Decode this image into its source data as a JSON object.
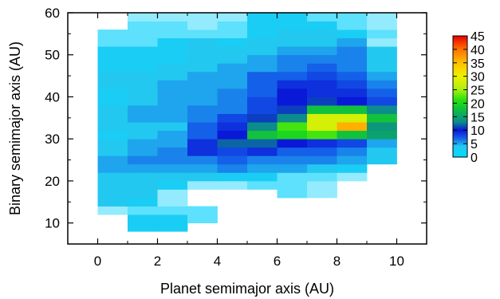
{
  "chart_data": {
    "type": "heatmap",
    "title": "",
    "xlabel": "Planet semimajor axis (AU)",
    "ylabel": "Binary semimajor axis (AU)",
    "xlim": [
      -1,
      11
    ],
    "ylim": [
      5,
      60
    ],
    "x_ticks": [
      0,
      2,
      4,
      6,
      8,
      10
    ],
    "y_ticks": [
      10,
      20,
      30,
      40,
      50,
      60
    ],
    "x_bins": [
      0,
      1,
      2,
      3,
      4,
      5,
      6,
      7,
      8,
      9,
      10
    ],
    "y_bins": [
      8,
      10,
      12,
      14,
      16,
      18,
      20,
      22,
      24,
      26,
      28,
      30,
      32,
      34,
      36,
      38,
      40,
      42,
      44,
      46,
      48,
      50,
      52,
      54,
      56,
      58,
      60
    ],
    "values": [
      [
        0,
        3,
        3,
        0,
        0,
        0,
        0,
        0,
        0,
        0
      ],
      [
        0,
        3,
        3,
        2,
        0,
        0,
        0,
        0,
        0,
        0
      ],
      [
        1,
        2,
        2,
        2,
        0,
        0,
        0,
        0,
        0,
        0
      ],
      [
        4,
        3,
        1,
        0,
        0,
        0,
        0,
        0,
        0,
        0
      ],
      [
        4,
        4,
        1,
        0,
        0,
        0,
        2,
        1,
        0,
        0
      ],
      [
        4,
        4,
        3,
        1,
        1,
        2,
        2,
        1,
        0,
        0
      ],
      [
        4,
        4,
        4,
        4,
        3,
        3,
        2,
        2,
        1,
        0
      ],
      [
        5,
        5,
        5,
        5,
        6,
        5,
        5,
        4,
        3,
        0
      ],
      [
        5,
        6,
        6,
        6,
        7,
        6,
        6,
        6,
        5,
        4
      ],
      [
        4,
        5,
        6,
        9,
        8,
        9,
        7,
        7,
        6,
        4
      ],
      [
        4,
        5,
        5,
        9,
        12,
        12,
        10,
        9,
        8,
        5
      ],
      [
        3,
        4,
        5,
        7,
        10,
        18,
        20,
        22,
        18,
        15
      ],
      [
        4,
        4,
        4,
        7,
        9,
        13,
        22,
        28,
        36,
        14
      ],
      [
        4,
        5,
        5,
        6,
        8,
        11,
        13,
        28,
        28,
        18
      ],
      [
        4,
        5,
        5,
        6,
        6,
        8,
        11,
        18,
        18,
        13
      ],
      [
        3,
        4,
        5,
        5,
        6,
        8,
        10,
        11,
        10,
        8
      ],
      [
        3,
        4,
        5,
        5,
        6,
        7,
        10,
        9,
        9,
        7
      ],
      [
        4,
        4,
        5,
        5,
        5,
        7,
        9,
        9,
        8,
        6
      ],
      [
        4,
        4,
        4,
        5,
        5,
        7,
        7,
        8,
        7,
        5
      ],
      [
        3,
        3,
        4,
        4,
        5,
        5,
        6,
        7,
        6,
        4
      ],
      [
        3,
        3,
        3,
        4,
        4,
        5,
        6,
        6,
        6,
        4
      ],
      [
        3,
        3,
        3,
        4,
        4,
        4,
        5,
        5,
        6,
        4
      ],
      [
        2,
        2,
        3,
        4,
        3,
        4,
        4,
        4,
        5,
        1
      ],
      [
        2,
        2,
        2,
        2,
        2,
        3,
        4,
        4,
        3,
        2
      ],
      [
        0,
        2,
        2,
        1,
        2,
        3,
        3,
        3,
        2,
        1
      ],
      [
        0,
        1,
        1,
        1,
        1,
        3,
        3,
        2,
        2,
        1
      ]
    ],
    "colorbar": {
      "min": 0,
      "max": 45,
      "ticks": [
        0,
        5,
        10,
        15,
        20,
        25,
        30,
        35,
        40,
        45
      ],
      "tick_labels": [
        "0",
        "5",
        "10",
        "15",
        "20",
        "25",
        "30",
        "35",
        "40",
        "45"
      ],
      "stops": [
        {
          "value": 0,
          "color": "#00ddff"
        },
        {
          "value": 4,
          "color": "#22c8f0"
        },
        {
          "value": 7,
          "color": "#1560e8"
        },
        {
          "value": 10,
          "color": "#0a18d8"
        },
        {
          "value": 13,
          "color": "#0c8c8c"
        },
        {
          "value": 17,
          "color": "#0cb84a"
        },
        {
          "value": 21,
          "color": "#22e010"
        },
        {
          "value": 25,
          "color": "#a8f010"
        },
        {
          "value": 30,
          "color": "#f0f000"
        },
        {
          "value": 35,
          "color": "#ffc000"
        },
        {
          "value": 40,
          "color": "#ff7000"
        },
        {
          "value": 45,
          "color": "#e80000"
        }
      ]
    },
    "grid": false,
    "legend": "colorbar right"
  }
}
